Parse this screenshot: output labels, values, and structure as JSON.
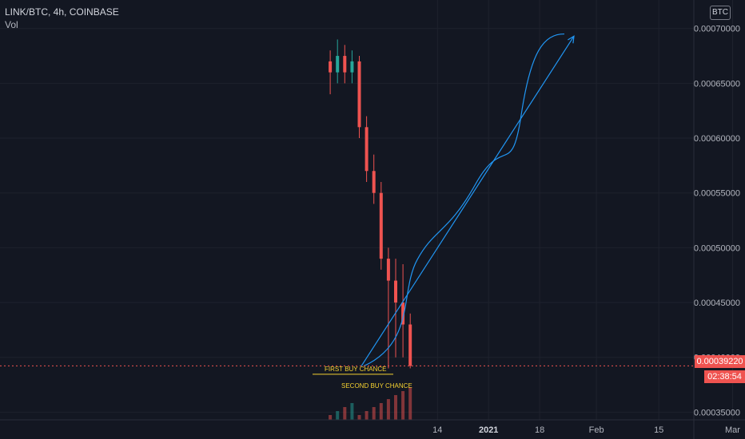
{
  "header": {
    "symbol": "LINK/BTC, 4h, COINBASE",
    "indicator": "Vol",
    "currency_badge": "BTC"
  },
  "price_tag": "0.00039220",
  "countdown": "02:38:54",
  "annotations": {
    "first_buy": "FIRST BUY CHANCE",
    "second_buy": "SECOND BUY CHANCE"
  },
  "colors": {
    "background": "#131722",
    "grid": "#1e222d",
    "axis_text": "#b2b5be",
    "up": "#26a69a",
    "down": "#ef5350",
    "annotation": "#f5d130",
    "drawing": "#2196f3"
  },
  "chart_data": {
    "type": "candlestick",
    "title": "LINK/BTC, 4h, COINBASE",
    "ylim": [
      0.000343,
      0.000726
    ],
    "y_ticks": [
      "0.00070000",
      "0.00065000",
      "0.00060000",
      "0.00055000",
      "0.00050000",
      "0.00045000",
      "0.00040000",
      "0.00035000"
    ],
    "x_ticks": [
      "14",
      "2021",
      "18",
      "Feb",
      "15",
      "Mar"
    ],
    "last_price": 0.0003922,
    "price_path": [
      {
        "date": "2021-01-12",
        "open": 0.00067,
        "high": 0.00068,
        "low": 0.00064,
        "close": 0.00066
      },
      {
        "date": "2021-01-13",
        "open": 0.00066,
        "high": 0.00069,
        "low": 0.00065,
        "close": 0.000675
      },
      {
        "date": "2021-01-14",
        "open": 0.000675,
        "high": 0.000685,
        "low": 0.00065,
        "close": 0.00066
      },
      {
        "date": "2021-01-15",
        "open": 0.00066,
        "high": 0.00068,
        "low": 0.00065,
        "close": 0.00067
      },
      {
        "date": "2021-01-16",
        "open": 0.00067,
        "high": 0.000675,
        "low": 0.0006,
        "close": 0.00061
      },
      {
        "date": "2021-01-17",
        "open": 0.00061,
        "high": 0.00062,
        "low": 0.00056,
        "close": 0.00057
      },
      {
        "date": "2021-01-18",
        "open": 0.00057,
        "high": 0.000585,
        "low": 0.00054,
        "close": 0.00055
      },
      {
        "date": "2021-01-19",
        "open": 0.00055,
        "high": 0.00056,
        "low": 0.00048,
        "close": 0.00049
      },
      {
        "date": "2021-01-20",
        "open": 0.00049,
        "high": 0.0005,
        "low": 0.00039,
        "close": 0.00047
      },
      {
        "date": "2021-01-21",
        "open": 0.00047,
        "high": 0.00049,
        "low": 0.0004,
        "close": 0.00045
      },
      {
        "date": "2021-01-22",
        "open": 0.00045,
        "high": 0.000485,
        "low": 0.0004,
        "close": 0.00043
      },
      {
        "date": "2021-01-23",
        "open": 0.00043,
        "high": 0.00044,
        "low": 0.00039,
        "close": 0.0003922
      }
    ],
    "horizontal_levels": [
      {
        "label": "FIRST BUY CHANCE",
        "value": 0.000389
      },
      {
        "label": "SECOND BUY CHANCE",
        "value": 0.000388
      }
    ],
    "projection_arrow": {
      "from": {
        "date": "2021-01-23",
        "value": 0.000392
      },
      "to": {
        "date": "2021-02-27",
        "value": 0.000693
      }
    },
    "projection_curve": [
      {
        "date": "2021-01-23",
        "value": 0.000392
      },
      {
        "date": "2021-01-30",
        "value": 0.00046
      },
      {
        "date": "2021-02-05",
        "value": 0.00052
      },
      {
        "date": "2021-02-12",
        "value": 0.00058
      },
      {
        "date": "2021-02-20",
        "value": 0.00065
      },
      {
        "date": "2021-02-27",
        "value": 0.000695
      }
    ],
    "grid": true
  }
}
